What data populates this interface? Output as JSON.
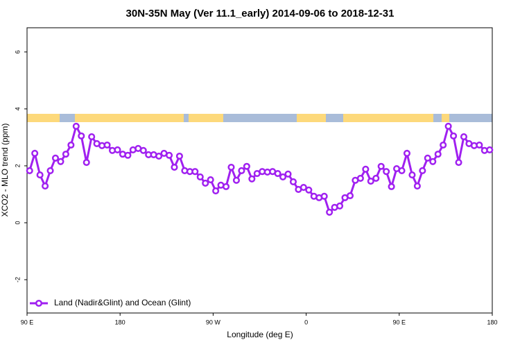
{
  "chart_data": {
    "type": "line",
    "title": "30N-35N May (Ver 11.1_early)   2014-09-06 to 2018-12-31",
    "x_label": "Longitude (deg E)",
    "y_label": "XCO2 - MLO trend (ppm)",
    "xlim": [
      90,
      540
    ],
    "xticks": [
      {
        "value": 90,
        "label": "90 E"
      },
      180,
      {
        "value": 270,
        "label": "90 W"
      },
      {
        "value": 360,
        "label": "0"
      },
      {
        "value": 450,
        "label": "90 E"
      },
      {
        "value": 540,
        "label": "180"
      }
    ],
    "ylim": [
      -3.17,
      6.85
    ],
    "yticks": [
      -2,
      0,
      2,
      4,
      6
    ],
    "legend_position": "bottom-left",
    "series": [
      {
        "name": "Land (Nadir&Glint) and Ocean (Glint)",
        "color": "#a020f0",
        "x": [
          92.5,
          97.5,
          102.5,
          107.5,
          112.5,
          117.5,
          122.5,
          127.5,
          132.5,
          137.5,
          142.5,
          147.5,
          152.5,
          157.5,
          162.5,
          167.5,
          172.5,
          177.5,
          182.5,
          187.5,
          192.5,
          197.5,
          202.5,
          207.5,
          212.5,
          217.5,
          222.5,
          227.5,
          232.5,
          237.5,
          242.5,
          247.5,
          252.5,
          257.5,
          262.5,
          267.5,
          272.5,
          277.5,
          282.5,
          287.5,
          292.5,
          297.5,
          302.5,
          307.5,
          312.5,
          317.5,
          322.5,
          327.5,
          332.5,
          337.5,
          342.5,
          347.5,
          352.5,
          357.5,
          362.5,
          367.5,
          372.5,
          377.5,
          382.5,
          387.5,
          392.5,
          397.5,
          402.5,
          407.5,
          412.5,
          417.5,
          422.5,
          427.5,
          432.5,
          437.5,
          442.5,
          447.5,
          452.5,
          457.5,
          462.5,
          467.5,
          472.5,
          477.5,
          482.5,
          487.5,
          492.5,
          497.5,
          502.5,
          507.5,
          512.5,
          517.5,
          522.5,
          527.5,
          532.5,
          537.5
        ],
        "values": [
          1.83,
          2.44,
          1.68,
          1.29,
          1.83,
          2.27,
          2.15,
          2.41,
          2.73,
          3.39,
          3.05,
          2.12,
          3.02,
          2.78,
          2.71,
          2.73,
          2.54,
          2.56,
          2.41,
          2.37,
          2.56,
          2.61,
          2.54,
          2.39,
          2.39,
          2.34,
          2.44,
          2.37,
          1.95,
          2.34,
          1.83,
          1.8,
          1.8,
          1.61,
          1.39,
          1.51,
          1.12,
          1.32,
          1.27,
          1.95,
          1.49,
          1.83,
          1.98,
          1.54,
          1.73,
          1.8,
          1.78,
          1.8,
          1.73,
          1.61,
          1.71,
          1.44,
          1.17,
          1.24,
          1.15,
          0.93,
          0.88,
          0.93,
          0.37,
          0.54,
          0.59,
          0.88,
          0.95,
          1.49,
          1.56,
          1.88,
          1.46,
          1.56,
          1.98,
          1.8,
          1.27,
          1.9,
          1.83,
          2.44,
          1.68,
          1.29,
          1.83,
          2.27,
          2.15,
          2.41,
          2.73,
          3.39,
          3.05,
          2.12,
          3.02,
          2.78,
          2.71,
          2.73,
          2.54,
          2.56
        ]
      }
    ]
  }
}
